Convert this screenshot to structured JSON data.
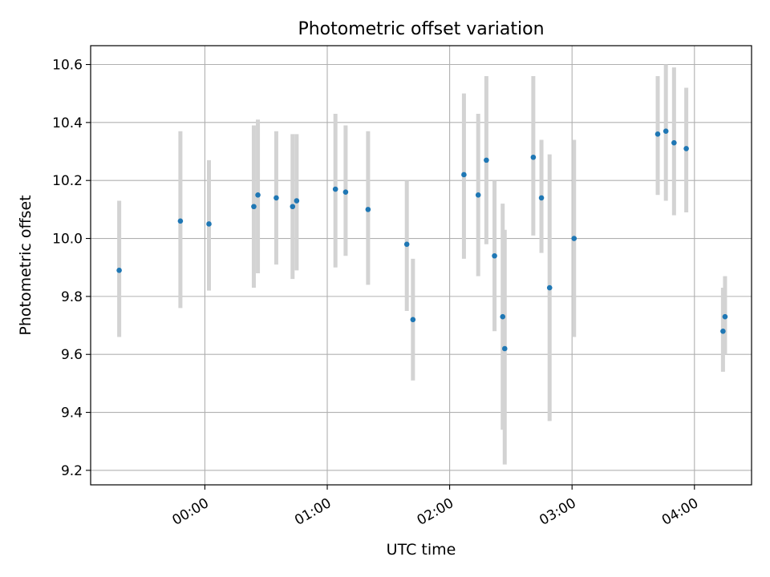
{
  "chart_data": {
    "type": "scatter",
    "title": "Photometric offset variation",
    "xlabel": "UTC time",
    "ylabel": "Photometric offset",
    "x_ticks": [
      "00:00",
      "01:00",
      "02:00",
      "03:00",
      "04:00"
    ],
    "x_tick_minutes": [
      0,
      60,
      120,
      180,
      240
    ],
    "y_ticks": [
      "9.2",
      "9.4",
      "9.6",
      "9.8",
      "10.0",
      "10.2",
      "10.4",
      "10.6"
    ],
    "xlim_minutes": [
      -56,
      268
    ],
    "ylim": [
      9.15,
      10.665
    ],
    "grid": true,
    "series": [
      {
        "marker_color": "#1f77b4",
        "errorbar_color": "#d3d3d3",
        "points": [
          {
            "x": "23:18",
            "y": 9.89,
            "y_low": 9.66,
            "y_high": 10.13
          },
          {
            "x": "23:48",
            "y": 10.06,
            "y_low": 9.76,
            "y_high": 10.37
          },
          {
            "x": "00:02",
            "y": 10.05,
            "y_low": 9.82,
            "y_high": 10.27
          },
          {
            "x": "00:24",
            "y": 10.11,
            "y_low": 9.83,
            "y_high": 10.39
          },
          {
            "x": "00:26",
            "y": 10.15,
            "y_low": 9.88,
            "y_high": 10.41
          },
          {
            "x": "00:35",
            "y": 10.14,
            "y_low": 9.91,
            "y_high": 10.37
          },
          {
            "x": "00:43",
            "y": 10.11,
            "y_low": 9.86,
            "y_high": 10.36
          },
          {
            "x": "00:45",
            "y": 10.13,
            "y_low": 9.89,
            "y_high": 10.36
          },
          {
            "x": "01:04",
            "y": 10.17,
            "y_low": 9.9,
            "y_high": 10.43
          },
          {
            "x": "01:09",
            "y": 10.16,
            "y_low": 9.94,
            "y_high": 10.39
          },
          {
            "x": "01:20",
            "y": 10.1,
            "y_low": 9.84,
            "y_high": 10.37
          },
          {
            "x": "01:39",
            "y": 9.98,
            "y_low": 9.75,
            "y_high": 10.2
          },
          {
            "x": "01:42",
            "y": 9.72,
            "y_low": 9.51,
            "y_high": 9.93
          },
          {
            "x": "02:07",
            "y": 10.22,
            "y_low": 9.93,
            "y_high": 10.5
          },
          {
            "x": "02:14",
            "y": 10.15,
            "y_low": 9.87,
            "y_high": 10.43
          },
          {
            "x": "02:18",
            "y": 10.27,
            "y_low": 9.98,
            "y_high": 10.56
          },
          {
            "x": "02:22",
            "y": 9.94,
            "y_low": 9.68,
            "y_high": 10.2
          },
          {
            "x": "02:26",
            "y": 9.73,
            "y_low": 9.34,
            "y_high": 10.12
          },
          {
            "x": "02:27",
            "y": 9.62,
            "y_low": 9.22,
            "y_high": 10.03
          },
          {
            "x": "02:41",
            "y": 10.28,
            "y_low": 10.01,
            "y_high": 10.56
          },
          {
            "x": "02:45",
            "y": 10.14,
            "y_low": 9.95,
            "y_high": 10.34
          },
          {
            "x": "02:49",
            "y": 9.83,
            "y_low": 9.37,
            "y_high": 10.29
          },
          {
            "x": "03:01",
            "y": 10.0,
            "y_low": 9.66,
            "y_high": 10.34
          },
          {
            "x": "03:42",
            "y": 10.36,
            "y_low": 10.15,
            "y_high": 10.56
          },
          {
            "x": "03:46",
            "y": 10.37,
            "y_low": 10.13,
            "y_high": 10.6
          },
          {
            "x": "03:50",
            "y": 10.33,
            "y_low": 10.08,
            "y_high": 10.59
          },
          {
            "x": "03:56",
            "y": 10.31,
            "y_low": 10.09,
            "y_high": 10.52
          },
          {
            "x": "04:14",
            "y": 9.68,
            "y_low": 9.54,
            "y_high": 9.83
          },
          {
            "x": "04:15",
            "y": 9.73,
            "y_low": 9.6,
            "y_high": 9.87
          }
        ]
      }
    ]
  }
}
